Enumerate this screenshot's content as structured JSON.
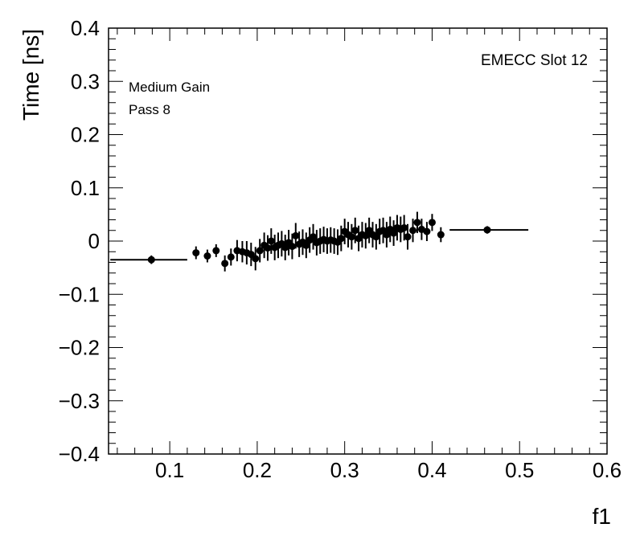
{
  "chart_data": {
    "type": "scatter",
    "xlabel": "f1",
    "ylabel": "Time [ns]",
    "xlim": [
      0.03,
      0.6
    ],
    "ylim": [
      -0.4,
      0.4
    ],
    "x_ticks": [
      {
        "value": 0.1,
        "label": "0.1"
      },
      {
        "value": 0.2,
        "label": "0.2"
      },
      {
        "value": 0.3,
        "label": "0.3"
      },
      {
        "value": 0.4,
        "label": "0.4"
      },
      {
        "value": 0.5,
        "label": "0.5"
      },
      {
        "value": 0.6,
        "label": "0.6"
      }
    ],
    "y_ticks": [
      {
        "value": -0.4,
        "label": "−0.4"
      },
      {
        "value": -0.3,
        "label": "−0.3"
      },
      {
        "value": -0.2,
        "label": "−0.2"
      },
      {
        "value": -0.1,
        "label": "−0.1"
      },
      {
        "value": 0.0,
        "label": "0"
      },
      {
        "value": 0.1,
        "label": "0.1"
      },
      {
        "value": 0.2,
        "label": "0.2"
      },
      {
        "value": 0.3,
        "label": "0.3"
      },
      {
        "value": 0.4,
        "label": "0.4"
      }
    ],
    "annotations": {
      "gain": "Medium Gain",
      "pass": "Pass 8",
      "slot": "EMECC Slot 12"
    },
    "grid": false,
    "points": [
      {
        "x": 0.079,
        "y": -0.035,
        "yerr": 0.008,
        "x_lo": 0.032,
        "x_hi": 0.12
      },
      {
        "x": 0.13,
        "y": -0.022,
        "yerr": 0.012
      },
      {
        "x": 0.143,
        "y": -0.028,
        "yerr": 0.012
      },
      {
        "x": 0.153,
        "y": -0.018,
        "yerr": 0.012
      },
      {
        "x": 0.163,
        "y": -0.042,
        "yerr": 0.015
      },
      {
        "x": 0.17,
        "y": -0.03,
        "yerr": 0.016
      },
      {
        "x": 0.177,
        "y": -0.018,
        "yerr": 0.02
      },
      {
        "x": 0.183,
        "y": -0.02,
        "yerr": 0.02
      },
      {
        "x": 0.188,
        "y": -0.022,
        "yerr": 0.022
      },
      {
        "x": 0.193,
        "y": -0.025,
        "yerr": 0.022
      },
      {
        "x": 0.198,
        "y": -0.033,
        "yerr": 0.022
      },
      {
        "x": 0.203,
        "y": -0.018,
        "yerr": 0.022
      },
      {
        "x": 0.208,
        "y": -0.008,
        "yerr": 0.024
      },
      {
        "x": 0.212,
        "y": -0.013,
        "yerr": 0.024
      },
      {
        "x": 0.216,
        "y": 0.0,
        "yerr": 0.024
      },
      {
        "x": 0.22,
        "y": -0.012,
        "yerr": 0.024
      },
      {
        "x": 0.224,
        "y": -0.008,
        "yerr": 0.024
      },
      {
        "x": 0.228,
        "y": -0.005,
        "yerr": 0.024
      },
      {
        "x": 0.232,
        "y": -0.012,
        "yerr": 0.024
      },
      {
        "x": 0.236,
        "y": -0.003,
        "yerr": 0.024
      },
      {
        "x": 0.24,
        "y": -0.01,
        "yerr": 0.024
      },
      {
        "x": 0.244,
        "y": 0.01,
        "yerr": 0.024
      },
      {
        "x": 0.248,
        "y": -0.006,
        "yerr": 0.024
      },
      {
        "x": 0.252,
        "y": -0.002,
        "yerr": 0.024
      },
      {
        "x": 0.256,
        "y": -0.008,
        "yerr": 0.024
      },
      {
        "x": 0.26,
        "y": 0.002,
        "yerr": 0.024
      },
      {
        "x": 0.264,
        "y": 0.008,
        "yerr": 0.024
      },
      {
        "x": 0.268,
        "y": -0.003,
        "yerr": 0.024
      },
      {
        "x": 0.272,
        "y": 0.0,
        "yerr": 0.024
      },
      {
        "x": 0.276,
        "y": 0.003,
        "yerr": 0.024
      },
      {
        "x": 0.28,
        "y": 0.0,
        "yerr": 0.024
      },
      {
        "x": 0.284,
        "y": 0.002,
        "yerr": 0.024
      },
      {
        "x": 0.288,
        "y": 0.0,
        "yerr": 0.024
      },
      {
        "x": 0.292,
        "y": -0.002,
        "yerr": 0.024
      },
      {
        "x": 0.296,
        "y": 0.005,
        "yerr": 0.024
      },
      {
        "x": 0.3,
        "y": 0.018,
        "yerr": 0.024
      },
      {
        "x": 0.304,
        "y": 0.012,
        "yerr": 0.024
      },
      {
        "x": 0.308,
        "y": 0.008,
        "yerr": 0.024
      },
      {
        "x": 0.312,
        "y": 0.02,
        "yerr": 0.024
      },
      {
        "x": 0.316,
        "y": 0.005,
        "yerr": 0.024
      },
      {
        "x": 0.32,
        "y": 0.012,
        "yerr": 0.024
      },
      {
        "x": 0.324,
        "y": 0.01,
        "yerr": 0.024
      },
      {
        "x": 0.328,
        "y": 0.02,
        "yerr": 0.024
      },
      {
        "x": 0.332,
        "y": 0.012,
        "yerr": 0.024
      },
      {
        "x": 0.336,
        "y": 0.008,
        "yerr": 0.024
      },
      {
        "x": 0.34,
        "y": 0.018,
        "yerr": 0.024
      },
      {
        "x": 0.344,
        "y": 0.02,
        "yerr": 0.024
      },
      {
        "x": 0.348,
        "y": 0.012,
        "yerr": 0.024
      },
      {
        "x": 0.352,
        "y": 0.022,
        "yerr": 0.024
      },
      {
        "x": 0.356,
        "y": 0.015,
        "yerr": 0.024
      },
      {
        "x": 0.36,
        "y": 0.025,
        "yerr": 0.024
      },
      {
        "x": 0.364,
        "y": 0.022,
        "yerr": 0.024
      },
      {
        "x": 0.368,
        "y": 0.025,
        "yerr": 0.024
      },
      {
        "x": 0.372,
        "y": 0.008,
        "yerr": 0.024
      },
      {
        "x": 0.378,
        "y": 0.02,
        "yerr": 0.022
      },
      {
        "x": 0.383,
        "y": 0.035,
        "yerr": 0.02
      },
      {
        "x": 0.388,
        "y": 0.022,
        "yerr": 0.02
      },
      {
        "x": 0.394,
        "y": 0.018,
        "yerr": 0.018
      },
      {
        "x": 0.4,
        "y": 0.035,
        "yerr": 0.016
      },
      {
        "x": 0.41,
        "y": 0.012,
        "yerr": 0.014
      },
      {
        "x": 0.463,
        "y": 0.021,
        "yerr": 0.007,
        "x_lo": 0.42,
        "x_hi": 0.51
      }
    ]
  }
}
